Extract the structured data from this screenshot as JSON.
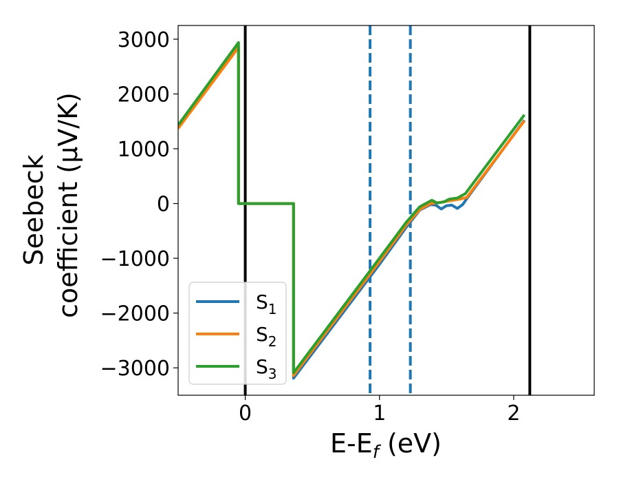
{
  "chart_data": {
    "type": "line",
    "xlabel": "E-E",
    "xlabel_sub": "f",
    "xlabel_unit": " (eV)",
    "ylabel_line1": "Seebeck",
    "ylabel_line2": "coefficient  (μV/K)",
    "xlim": [
      -0.5,
      2.6
    ],
    "ylim": [
      -3500,
      3250
    ],
    "xticks": [
      0,
      1,
      2
    ],
    "xtick_labels": [
      "0",
      "1",
      "2"
    ],
    "yticks": [
      3000,
      2000,
      1000,
      0,
      -1000,
      -2000,
      -3000
    ],
    "ytick_labels": [
      "3000",
      "2000",
      "1000",
      "0",
      "−1000",
      "−2000",
      "−3000"
    ],
    "grid": false,
    "legend_position": "lower-left",
    "solid_vlines": [
      0,
      2.12
    ],
    "dashed_vlines": [
      0.93,
      1.23
    ],
    "dashed_color": "#1f77b4",
    "series": [
      {
        "name": "S",
        "sub": "1",
        "color": "#1f77b4",
        "x": [
          -0.5,
          -0.05,
          -0.05,
          0.36,
          0.36,
          1.0,
          1.2,
          1.3,
          1.38,
          1.42,
          1.46,
          1.5,
          1.54,
          1.58,
          1.62,
          1.66,
          2.08
        ],
        "y": [
          1380,
          2860,
          0,
          0,
          -3190,
          -1110,
          -430,
          -120,
          -20,
          -30,
          -100,
          -40,
          -30,
          -90,
          -20,
          120,
          1520
        ]
      },
      {
        "name": "S",
        "sub": "2",
        "color": "#ff7f0e",
        "x": [
          -0.5,
          -0.05,
          -0.05,
          0.36,
          0.36,
          1.0,
          1.2,
          1.3,
          1.38,
          1.45,
          1.5,
          1.55,
          1.6,
          1.65,
          2.08
        ],
        "y": [
          1370,
          2850,
          0,
          0,
          -3140,
          -1060,
          -390,
          -110,
          0,
          20,
          40,
          60,
          80,
          110,
          1510
        ]
      },
      {
        "name": "S",
        "sub": "3",
        "color": "#2ca02c",
        "x": [
          -0.5,
          -0.05,
          -0.05,
          0.36,
          0.36,
          1.0,
          1.2,
          1.3,
          1.36,
          1.39,
          1.43,
          1.48,
          1.52,
          1.58,
          1.64,
          2.08
        ],
        "y": [
          1430,
          2940,
          0,
          0,
          -3090,
          -1000,
          -340,
          -60,
          20,
          60,
          10,
          30,
          80,
          100,
          180,
          1620
        ]
      }
    ]
  }
}
